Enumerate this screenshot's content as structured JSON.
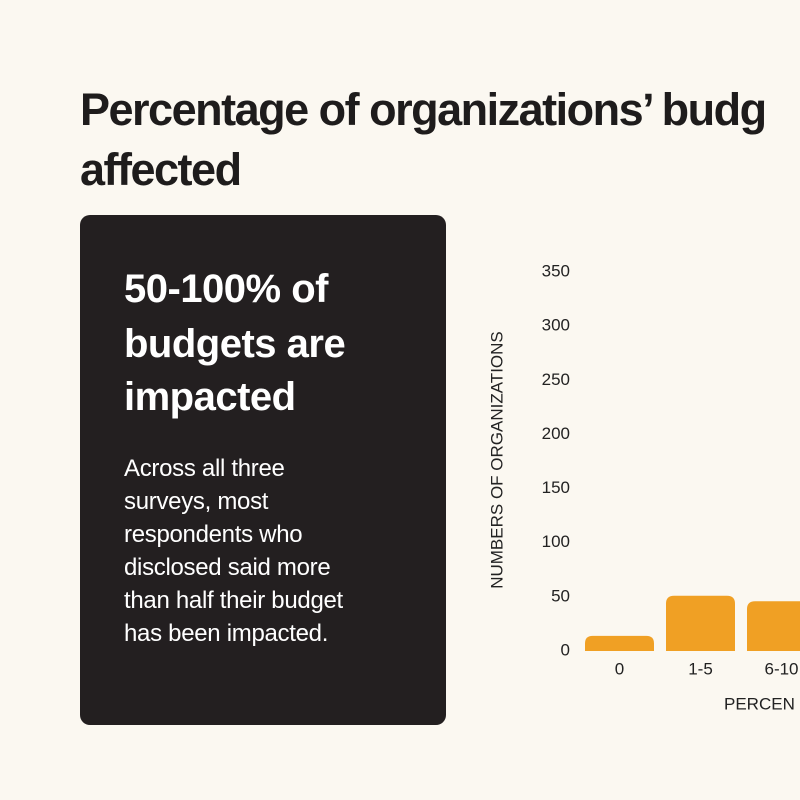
{
  "title_lines": [
    "Percentage of organizations’ budg",
    "affected"
  ],
  "card": {
    "heading_lines": [
      "50-100% of",
      "budgets are",
      "impacted"
    ],
    "body_lines": [
      "Across all three",
      "surveys, most",
      "respondents who",
      "disclosed said more",
      "than half their budget",
      "has been impacted."
    ]
  },
  "chart_data": {
    "type": "bar",
    "y_label": "NUMBERS OF ORGANIZATIONS",
    "x_label": "PERCEN",
    "categories": [
      "0",
      "1-5",
      "6-10"
    ],
    "values": [
      14,
      51,
      46
    ],
    "color": "#f0a024",
    "ylim": [
      0,
      350
    ],
    "yticks": [
      0,
      50,
      100,
      150,
      200,
      250,
      300,
      350
    ]
  }
}
